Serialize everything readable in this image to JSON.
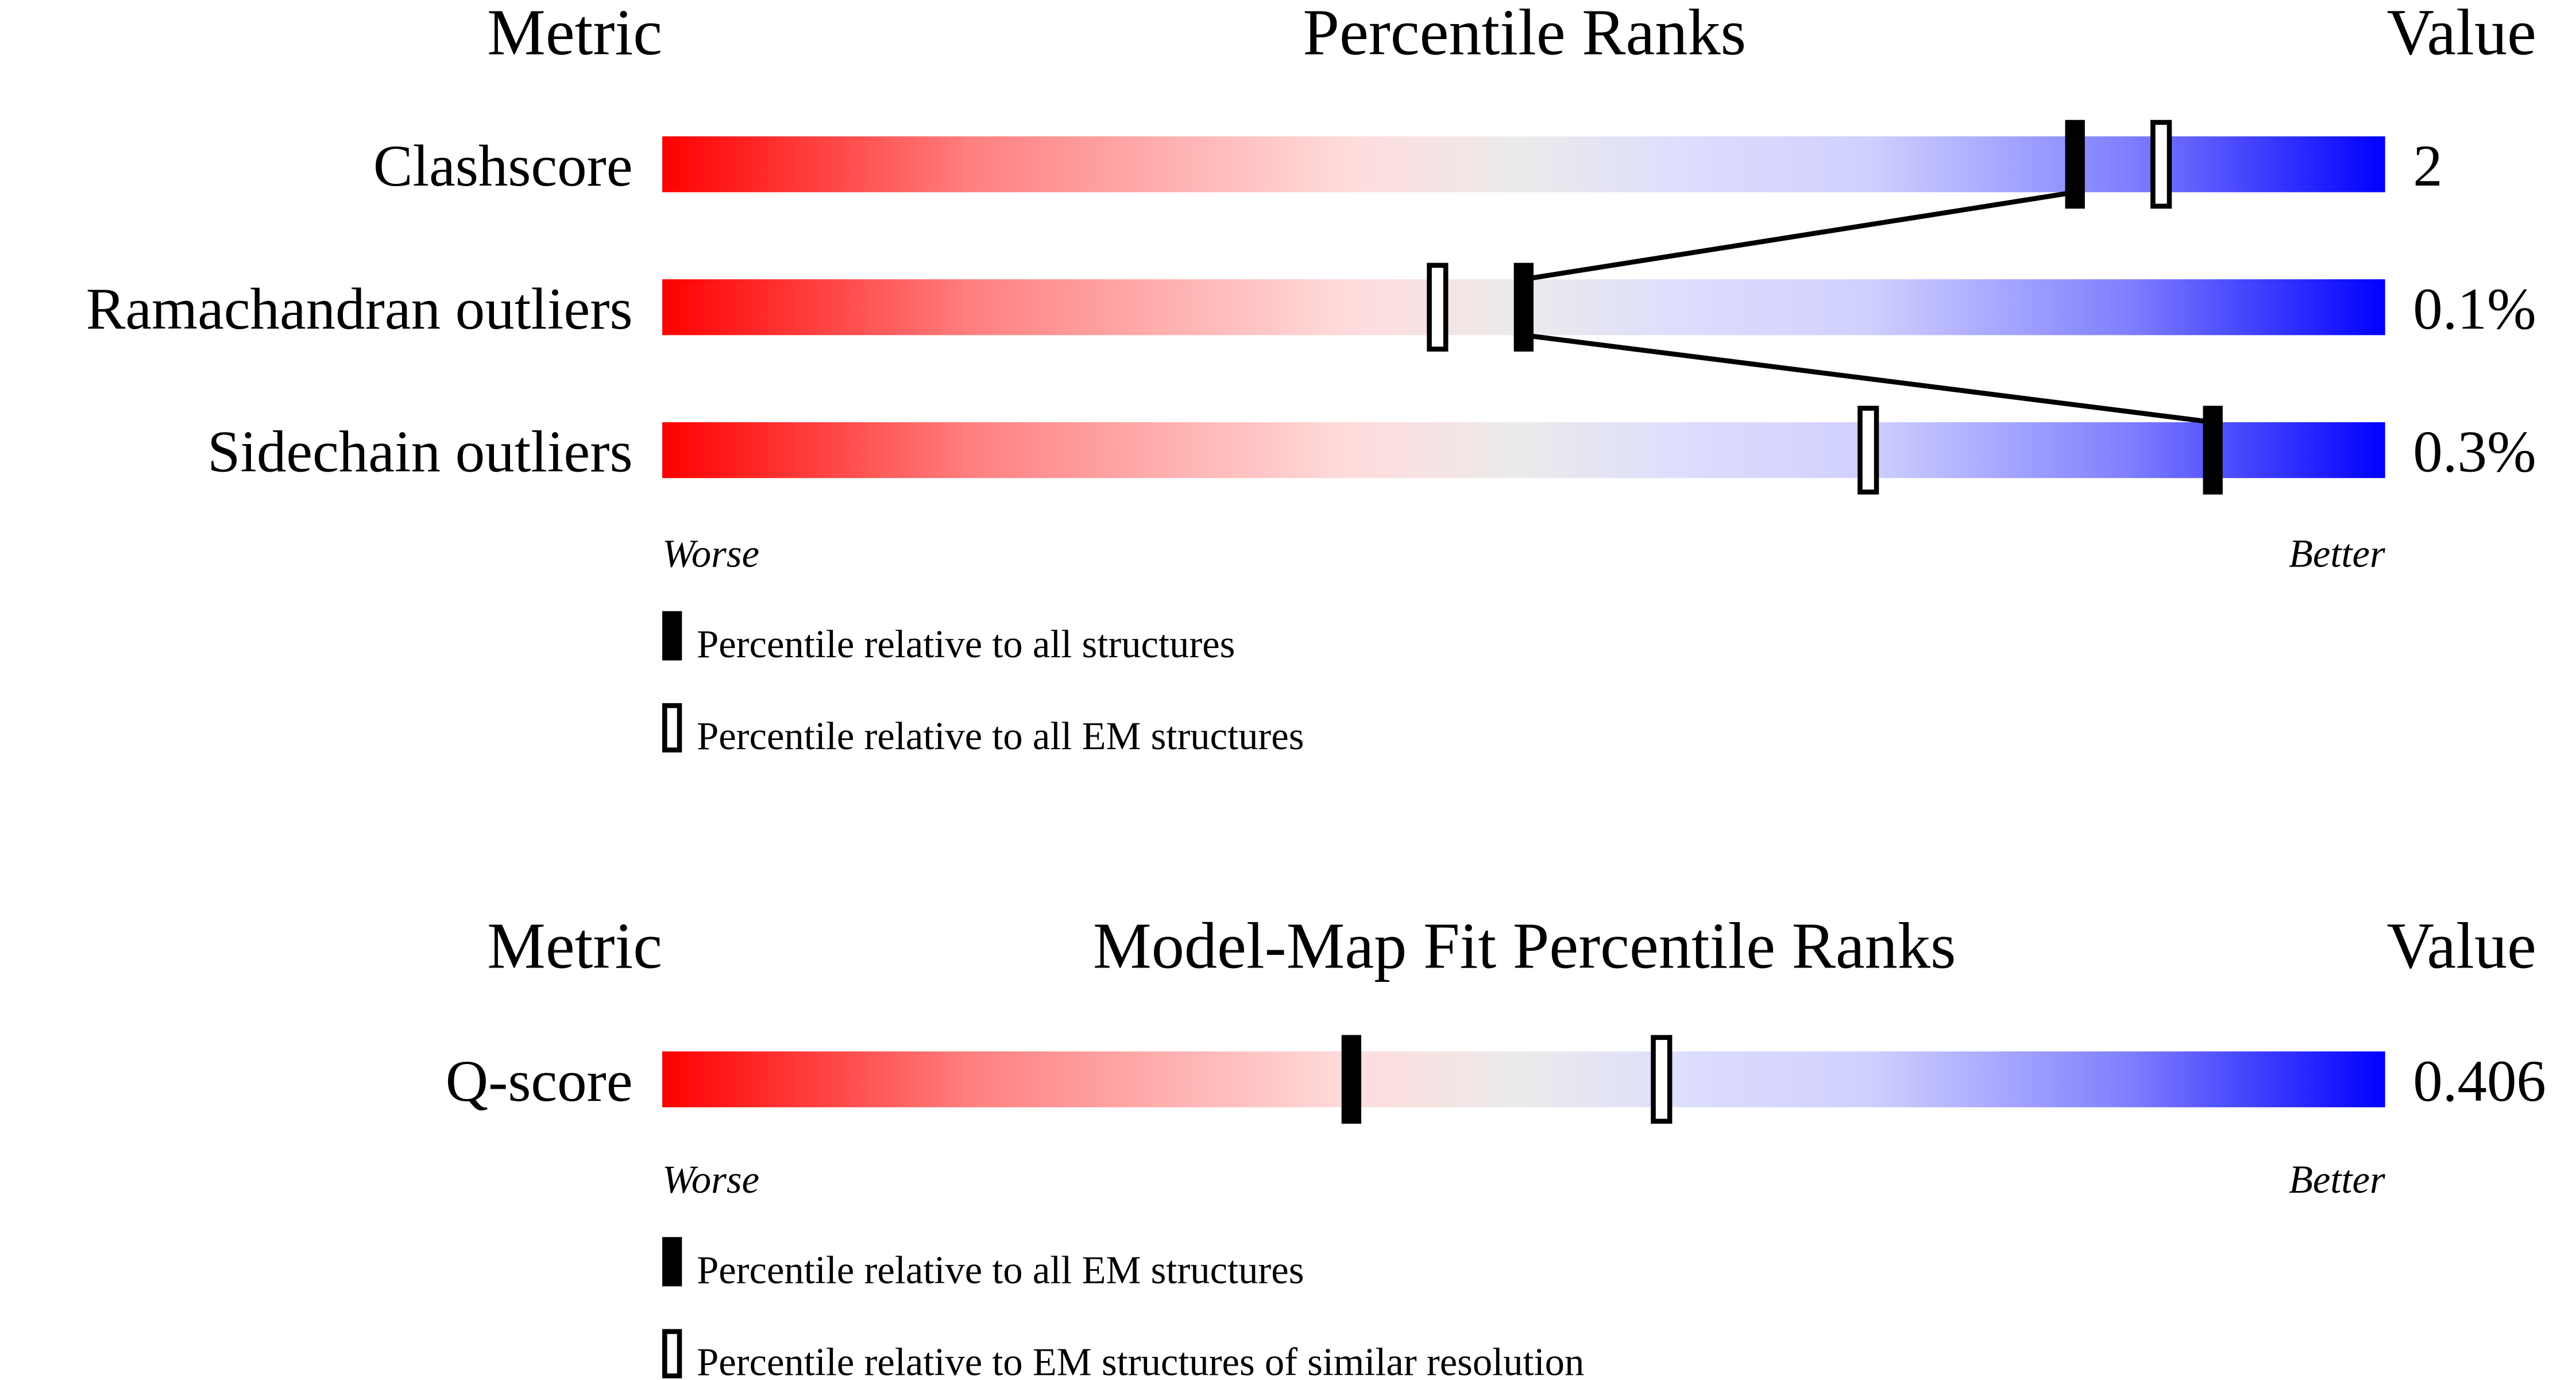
{
  "chart_data": [
    {
      "type": "bar",
      "title": "Percentile Ranks",
      "metric_header": "Metric",
      "value_header": "Value",
      "xlim": [
        0,
        100
      ],
      "axis_left_label": "Worse",
      "axis_right_label": "Better",
      "categories": [
        "Clashscore",
        "Ramachandran outliers",
        "Sidechain outliers"
      ],
      "values_display": [
        "2",
        "0.1%",
        "0.3%"
      ],
      "series": [
        {
          "name": "Percentile relative to all structures",
          "marker": "filled",
          "values": [
            82,
            50,
            90
          ]
        },
        {
          "name": "Percentile relative to all EM structures",
          "marker": "open",
          "values": [
            87,
            45,
            70
          ]
        }
      ],
      "connect_filled_markers": true,
      "gradient_colors": [
        "#ff0000",
        "#ff8080",
        "#ffdcdc",
        "#ebebeb",
        "#dcdcff",
        "#d0d0ff",
        "#8080ff",
        "#0000ff"
      ]
    },
    {
      "type": "bar",
      "title": "Model-Map Fit Percentile Ranks",
      "metric_header": "Metric",
      "value_header": "Value",
      "xlim": [
        0,
        100
      ],
      "axis_left_label": "Worse",
      "axis_right_label": "Better",
      "categories": [
        "Q-score"
      ],
      "values_display": [
        "0.406"
      ],
      "series": [
        {
          "name": "Percentile relative to all EM structures",
          "marker": "filled",
          "values": [
            40
          ]
        },
        {
          "name": "Percentile relative to EM structures of similar resolution",
          "marker": "open",
          "values": [
            58
          ]
        }
      ],
      "connect_filled_markers": false,
      "gradient_colors": [
        "#ff0000",
        "#ff8080",
        "#ffdcdc",
        "#ebebeb",
        "#dcdcff",
        "#d0d0ff",
        "#8080ff",
        "#0000ff"
      ]
    }
  ]
}
